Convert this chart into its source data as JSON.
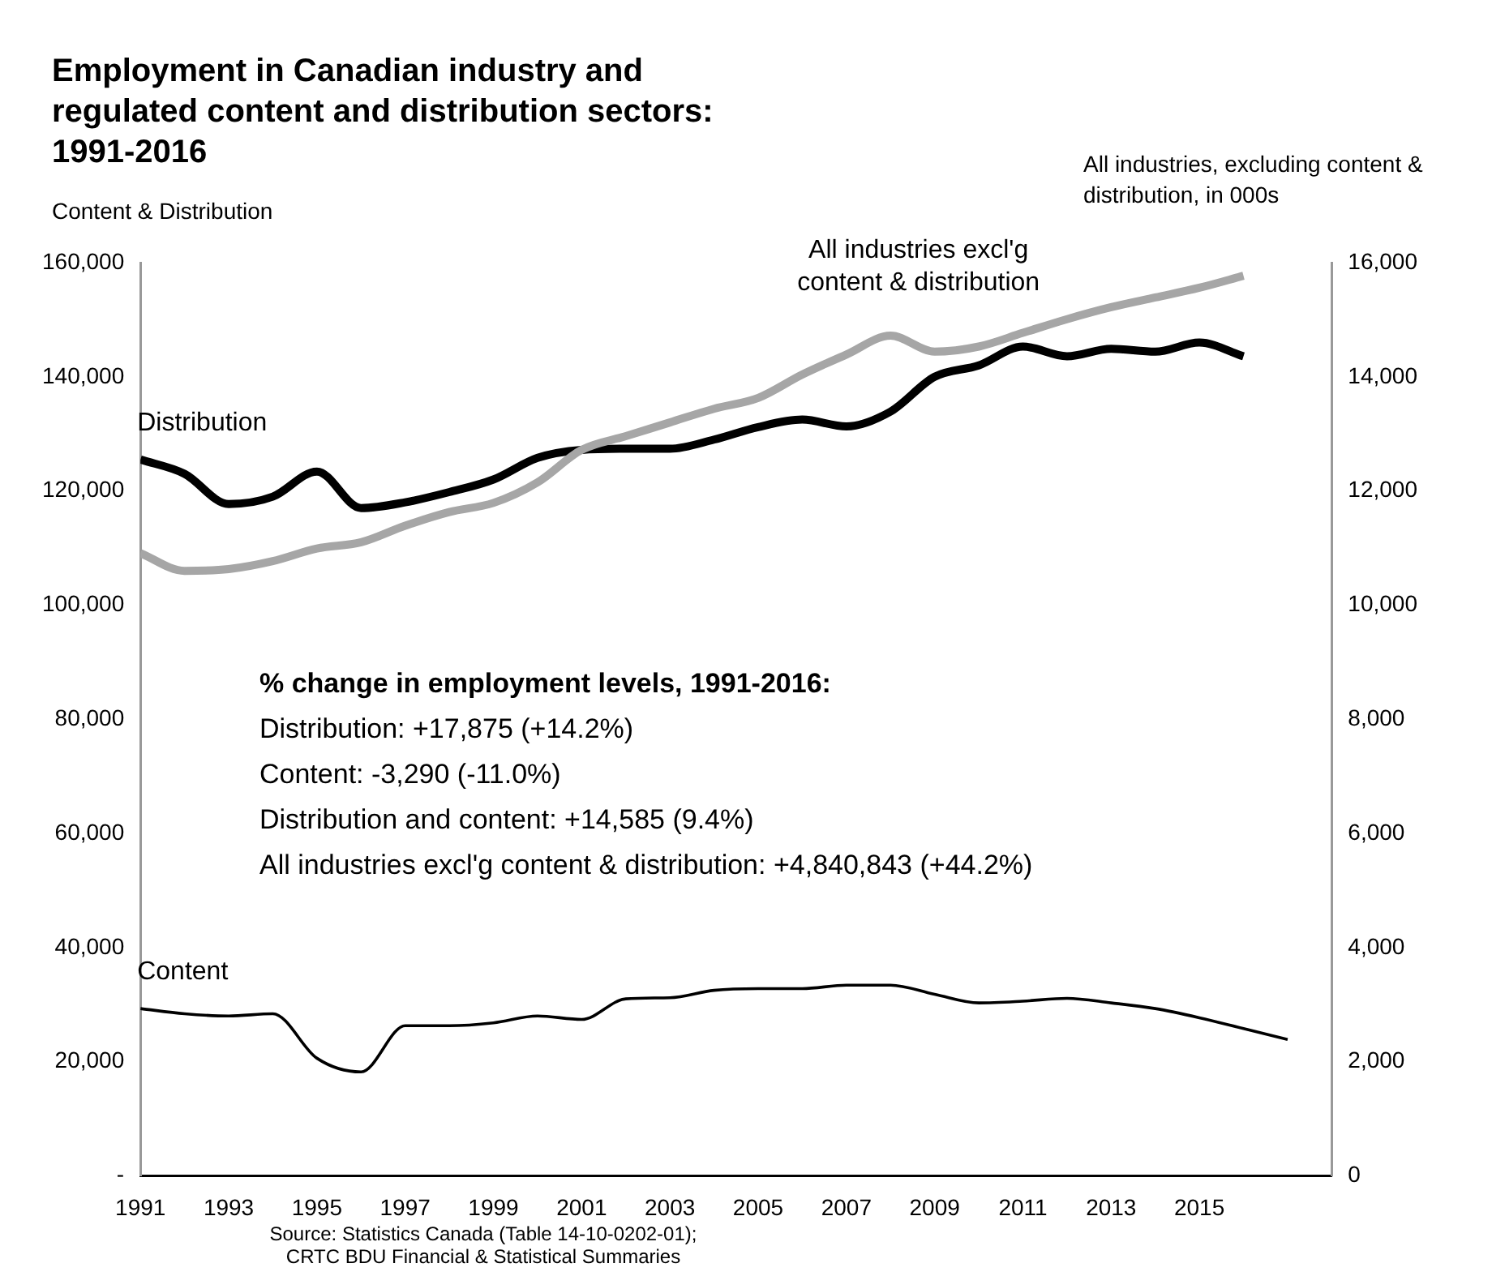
{
  "chart_data": {
    "type": "line",
    "title": "Employment in Canadian industry and regulated content and distribution sectors: 1991-2016",
    "ylabel": "Content & Distribution",
    "y2label": "All industries, excluding content & distribution, in 000s",
    "xlim": [
      1991,
      2018
    ],
    "xticks": [
      1991,
      1993,
      1995,
      1997,
      1999,
      2001,
      2003,
      2005,
      2007,
      2009,
      2011,
      2013,
      2015
    ],
    "ylim": [
      0,
      160000
    ],
    "yticks": [
      {
        "value": 0,
        "label": "-"
      },
      {
        "value": 20000,
        "label": "20,000"
      },
      {
        "value": 40000,
        "label": "40,000"
      },
      {
        "value": 60000,
        "label": "60,000"
      },
      {
        "value": 80000,
        "label": "80,000"
      },
      {
        "value": 100000,
        "label": "100,000"
      },
      {
        "value": 120000,
        "label": "120,000"
      },
      {
        "value": 140000,
        "label": "140,000"
      },
      {
        "value": 160000,
        "label": "160,000"
      }
    ],
    "y2lim": [
      0,
      16000
    ],
    "y2ticks": [
      0,
      {
        "value": 2000,
        "label": "2,000"
      },
      {
        "value": 4000,
        "label": "4,000"
      },
      {
        "value": 6000,
        "label": "6,000"
      },
      {
        "value": 8000,
        "label": "8,000"
      },
      {
        "value": 10000,
        "label": "10,000"
      },
      {
        "value": 12000,
        "label": "12,000"
      },
      {
        "value": 14000,
        "label": "14,000"
      },
      {
        "value": 16000,
        "label": "16,000"
      }
    ],
    "grid": false,
    "legend": false,
    "marker": "none",
    "line_style": "solid",
    "series": [
      {
        "name": "All industries excl'g content & distribution",
        "color": "#a6a6a6",
        "axis": "y2",
        "x": [
          1991,
          1992,
          1993,
          1994,
          1995,
          1996,
          1997,
          1998,
          1999,
          2000,
          2001,
          2002,
          2003,
          2004,
          2005,
          2006,
          2007,
          2008,
          2009,
          2010,
          2011,
          2012,
          2013,
          2014,
          2015,
          2016
        ],
        "values": [
          10910,
          10600,
          10630,
          10770,
          10990,
          11100,
          11390,
          11630,
          11790,
          12150,
          12720,
          12960,
          13200,
          13440,
          13630,
          14040,
          14390,
          14720,
          14440,
          14530,
          14770,
          15010,
          15220,
          15390,
          15560,
          15770
        ]
      },
      {
        "name": "Distribution",
        "color": "#000000",
        "axis": "y",
        "x": [
          1991,
          1992,
          1993,
          1994,
          1995,
          1996,
          1997,
          1998,
          1999,
          2000,
          2001,
          2002,
          2003,
          2004,
          2005,
          2006,
          2007,
          2008,
          2009,
          2010,
          2011,
          2012,
          2013,
          2014,
          2015,
          2016
        ],
        "values": [
          125500,
          123000,
          117700,
          119000,
          123400,
          117000,
          118000,
          119800,
          122000,
          125800,
          127200,
          127400,
          127400,
          129000,
          131200,
          132500,
          131300,
          133900,
          140000,
          142000,
          145300,
          143600,
          144900,
          144400,
          146000,
          143600
        ]
      },
      {
        "name": "Content",
        "color": "#000000",
        "axis": "y",
        "x": [
          1991,
          1992,
          1993,
          1994,
          1995,
          1996,
          1997,
          1998,
          1999,
          2000,
          2001,
          2002,
          2003,
          2004,
          2005,
          2006,
          2007,
          2008,
          2009,
          2010,
          2011,
          2012,
          2013,
          2014,
          2015,
          2016,
          2017
        ],
        "values": [
          29300,
          28400,
          28000,
          28400,
          20600,
          18200,
          26300,
          26300,
          26800,
          28000,
          27400,
          31000,
          31200,
          32500,
          32800,
          32800,
          33400,
          33400,
          31800,
          30300,
          30600,
          31100,
          30300,
          29300,
          27700,
          25800,
          23900
        ]
      }
    ],
    "annotations": [
      "% change in employment levels, 1991-2016:",
      "Distribution: +17,875 (+14.2%)",
      "Content:  -3,290 (-11.0%)",
      "Distribution and content:  +14,585 (9.4%)",
      "All industries excl'g content & distribution: +4,840,843 (+44.2%)",
      "Source:  Statistics Canada (Table 14-10-0202-01);",
      "CRTC BDU Financial & Statistical Summaries"
    ]
  }
}
